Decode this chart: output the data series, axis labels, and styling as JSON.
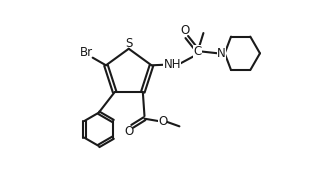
{
  "bg_color": "#ffffff",
  "line_color": "#1a1a1a",
  "line_width": 1.5,
  "font_size": 8.5,
  "fig_width": 3.34,
  "fig_height": 1.82,
  "dpi": 100,
  "xlim": [
    0,
    10
  ],
  "ylim": [
    0,
    5.4
  ]
}
